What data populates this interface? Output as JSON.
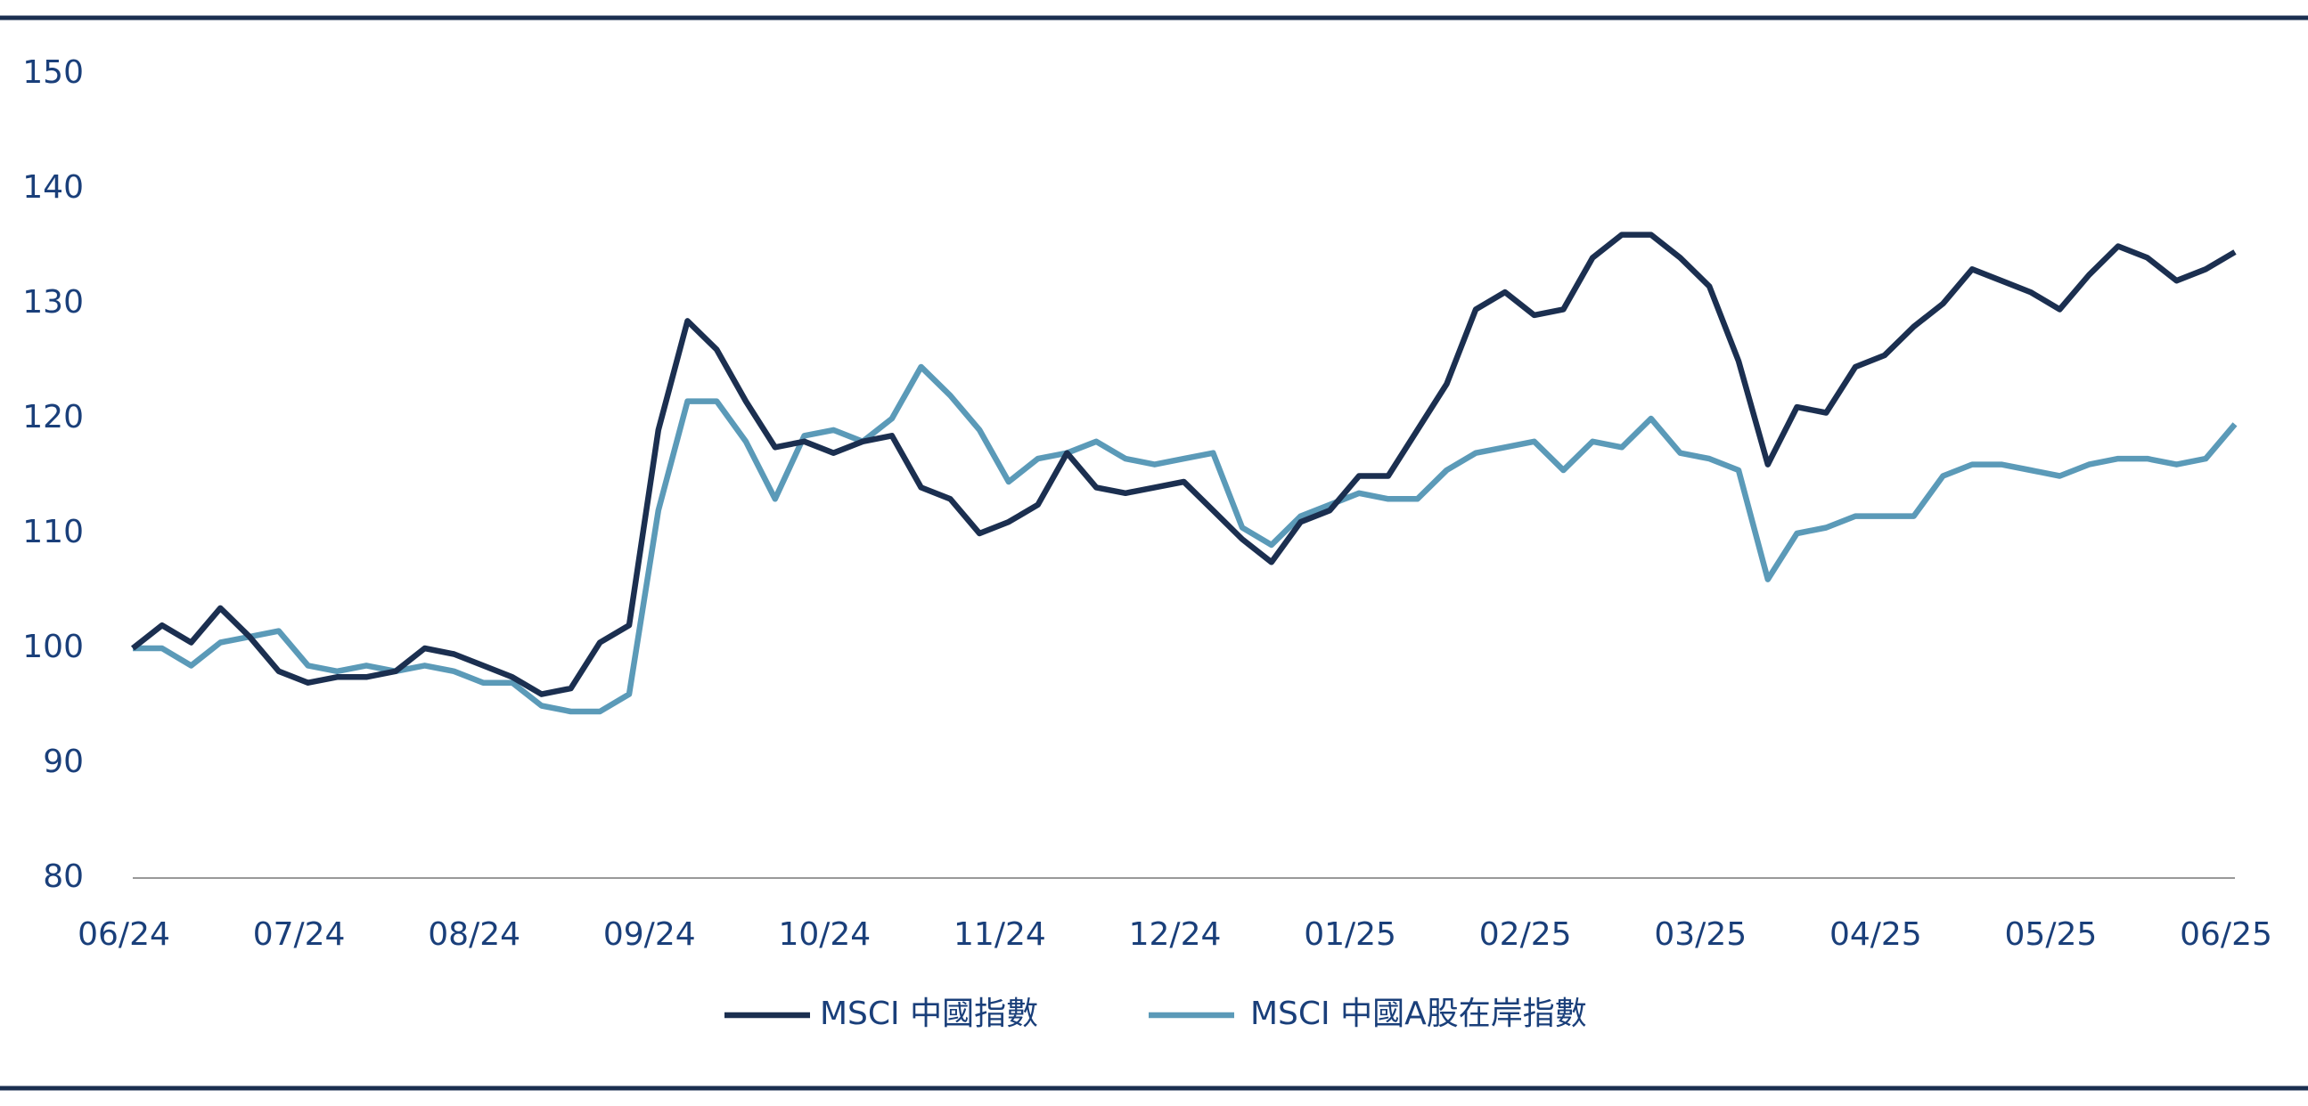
{
  "chart_data": {
    "type": "line",
    "categories": [
      "06/24",
      null,
      null,
      null,
      null,
      null,
      "07/24",
      null,
      null,
      null,
      null,
      null,
      "08/24",
      null,
      null,
      null,
      null,
      null,
      "09/24",
      null,
      null,
      null,
      null,
      null,
      "10/24",
      null,
      null,
      null,
      null,
      null,
      "11/24",
      null,
      null,
      null,
      null,
      null,
      "12/24",
      null,
      null,
      null,
      null,
      null,
      "01/25",
      null,
      null,
      null,
      null,
      null,
      "02/25",
      null,
      null,
      null,
      null,
      null,
      "03/25",
      null,
      null,
      null,
      null,
      null,
      "04/25",
      null,
      null,
      null,
      null,
      null,
      "05/25",
      null,
      null,
      null,
      null,
      null,
      "06/25"
    ],
    "series": [
      {
        "name": "MSCI 中國指數",
        "color": "#1b2f50",
        "values": [
          100,
          102,
          100.5,
          103.5,
          101,
          98,
          97,
          97.5,
          97.5,
          98,
          100,
          99.5,
          98.5,
          97.5,
          96,
          96.5,
          100.5,
          102,
          119,
          128.5,
          126,
          121.5,
          117.5,
          118,
          117,
          118,
          118.5,
          114,
          113,
          110,
          111,
          112.5,
          117,
          114,
          113.5,
          114,
          114.5,
          112,
          109.5,
          107.5,
          111,
          112,
          115,
          115,
          119,
          123,
          129.5,
          131,
          129,
          129.5,
          134,
          136,
          136,
          134,
          131.5,
          125,
          116,
          121,
          120.5,
          124.5,
          125.5,
          128,
          130,
          133,
          132,
          131,
          129.5,
          132.5,
          135,
          134,
          132,
          133,
          134.5
        ]
      },
      {
        "name": "MSCI 中國A股在岸指數",
        "color": "#5b9ab8",
        "values": [
          100,
          100,
          98.5,
          100.5,
          101,
          101.5,
          98.5,
          98,
          98.5,
          98,
          98.5,
          98,
          97,
          97,
          95,
          94.5,
          94.5,
          96,
          112,
          121.5,
          121.5,
          118,
          113,
          118.5,
          119,
          118,
          120,
          124.5,
          122,
          119,
          114.5,
          116.5,
          117,
          118,
          116.5,
          116,
          116.5,
          117,
          110.5,
          109,
          111.5,
          112.5,
          113.5,
          113,
          113,
          115.5,
          117,
          117.5,
          118,
          115.5,
          118,
          117.5,
          120,
          117,
          116.5,
          115.5,
          106,
          110,
          110.5,
          111.5,
          111.5,
          111.5,
          115,
          116,
          116,
          115.5,
          115,
          116,
          116.5,
          116.5,
          116,
          116.5,
          119.5
        ]
      }
    ],
    "ylim": [
      80,
      150
    ],
    "yticks": [
      80,
      90,
      100,
      110,
      120,
      130,
      140,
      150
    ],
    "grid": false,
    "legend": "bottom"
  }
}
